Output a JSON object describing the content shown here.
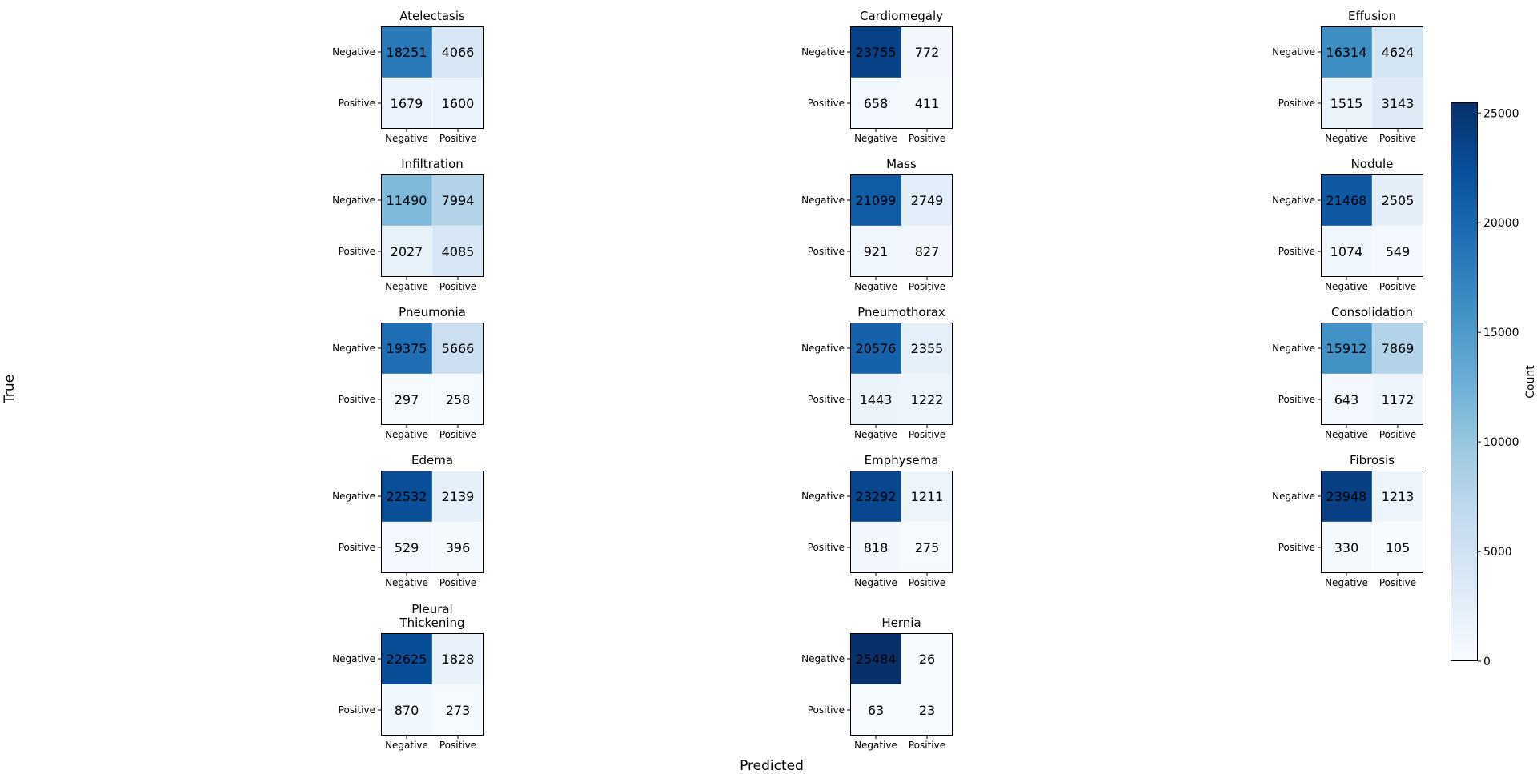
{
  "figure": {
    "xlabel": "Predicted",
    "ylabel": "True",
    "colorbar": {
      "label": "Count",
      "ticks": [
        0,
        5000,
        10000,
        15000,
        20000,
        25000
      ],
      "vmin": 0,
      "vmax": 25484,
      "colormap": "Blues",
      "color_low": "#f7fbff",
      "color_high": "#08306b"
    }
  },
  "chart_data": [
    {
      "type": "heatmap",
      "title": "Atelectasis",
      "row_labels": [
        "Negative",
        "Positive"
      ],
      "col_labels": [
        "Negative",
        "Positive"
      ],
      "values": [
        [
          18251,
          4066
        ],
        [
          1679,
          1600
        ]
      ]
    },
    {
      "type": "heatmap",
      "title": "Cardiomegaly",
      "row_labels": [
        "Negative",
        "Positive"
      ],
      "col_labels": [
        "Negative",
        "Positive"
      ],
      "values": [
        [
          23755,
          772
        ],
        [
          658,
          411
        ]
      ]
    },
    {
      "type": "heatmap",
      "title": "Effusion",
      "row_labels": [
        "Negative",
        "Positive"
      ],
      "col_labels": [
        "Negative",
        "Positive"
      ],
      "values": [
        [
          16314,
          4624
        ],
        [
          1515,
          3143
        ]
      ]
    },
    {
      "type": "heatmap",
      "title": "Infiltration",
      "row_labels": [
        "Negative",
        "Positive"
      ],
      "col_labels": [
        "Negative",
        "Positive"
      ],
      "values": [
        [
          11490,
          7994
        ],
        [
          2027,
          4085
        ]
      ]
    },
    {
      "type": "heatmap",
      "title": "Mass",
      "row_labels": [
        "Negative",
        "Positive"
      ],
      "col_labels": [
        "Negative",
        "Positive"
      ],
      "values": [
        [
          21099,
          2749
        ],
        [
          921,
          827
        ]
      ]
    },
    {
      "type": "heatmap",
      "title": "Nodule",
      "row_labels": [
        "Negative",
        "Positive"
      ],
      "col_labels": [
        "Negative",
        "Positive"
      ],
      "values": [
        [
          21468,
          2505
        ],
        [
          1074,
          549
        ]
      ]
    },
    {
      "type": "heatmap",
      "title": "Pneumonia",
      "row_labels": [
        "Negative",
        "Positive"
      ],
      "col_labels": [
        "Negative",
        "Positive"
      ],
      "values": [
        [
          19375,
          5666
        ],
        [
          297,
          258
        ]
      ]
    },
    {
      "type": "heatmap",
      "title": "Pneumothorax",
      "row_labels": [
        "Negative",
        "Positive"
      ],
      "col_labels": [
        "Negative",
        "Positive"
      ],
      "values": [
        [
          20576,
          2355
        ],
        [
          1443,
          1222
        ]
      ]
    },
    {
      "type": "heatmap",
      "title": "Consolidation",
      "row_labels": [
        "Negative",
        "Positive"
      ],
      "col_labels": [
        "Negative",
        "Positive"
      ],
      "values": [
        [
          15912,
          7869
        ],
        [
          643,
          1172
        ]
      ]
    },
    {
      "type": "heatmap",
      "title": "Edema",
      "row_labels": [
        "Negative",
        "Positive"
      ],
      "col_labels": [
        "Negative",
        "Positive"
      ],
      "values": [
        [
          22532,
          2139
        ],
        [
          529,
          396
        ]
      ]
    },
    {
      "type": "heatmap",
      "title": "Emphysema",
      "row_labels": [
        "Negative",
        "Positive"
      ],
      "col_labels": [
        "Negative",
        "Positive"
      ],
      "values": [
        [
          23292,
          1211
        ],
        [
          818,
          275
        ]
      ]
    },
    {
      "type": "heatmap",
      "title": "Fibrosis",
      "row_labels": [
        "Negative",
        "Positive"
      ],
      "col_labels": [
        "Negative",
        "Positive"
      ],
      "values": [
        [
          23948,
          1213
        ],
        [
          330,
          105
        ]
      ]
    },
    {
      "type": "heatmap",
      "title": "Pleural\nThickening",
      "row_labels": [
        "Negative",
        "Positive"
      ],
      "col_labels": [
        "Negative",
        "Positive"
      ],
      "values": [
        [
          22625,
          1828
        ],
        [
          870,
          273
        ]
      ]
    },
    {
      "type": "heatmap",
      "title": "Hernia",
      "row_labels": [
        "Negative",
        "Positive"
      ],
      "col_labels": [
        "Negative",
        "Positive"
      ],
      "values": [
        [
          25484,
          26
        ],
        [
          63,
          23
        ]
      ]
    }
  ]
}
